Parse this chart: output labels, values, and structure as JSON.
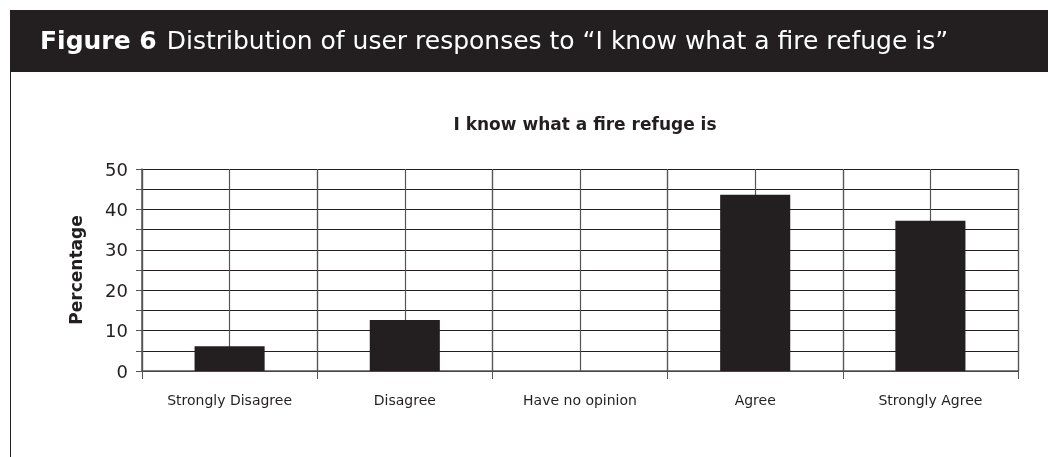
{
  "chart_data": {
    "type": "bar",
    "title": "Figure 6  Distribution of user responses to “I know what a fire refuge is”",
    "subtitle": "I know what a fire refuge is",
    "ylabel": "Percentage",
    "categories": [
      "Strongly Disagree",
      "Disagree",
      "Have no opinion",
      "Agree",
      "Strongly Agree"
    ],
    "values": [
      6.1,
      12.6,
      0,
      43.6,
      37.2
    ],
    "color": "#231f20",
    "ylim": [
      0,
      50
    ],
    "yticks": [
      0,
      {
        "value": 5,
        "label": null
      },
      10,
      {
        "value": 15,
        "label": null
      },
      20,
      {
        "value": 25,
        "label": null
      },
      30,
      {
        "value": 35,
        "label": null
      },
      40,
      {
        "value": 45,
        "label": null
      },
      50
    ],
    "grid": true
  }
}
